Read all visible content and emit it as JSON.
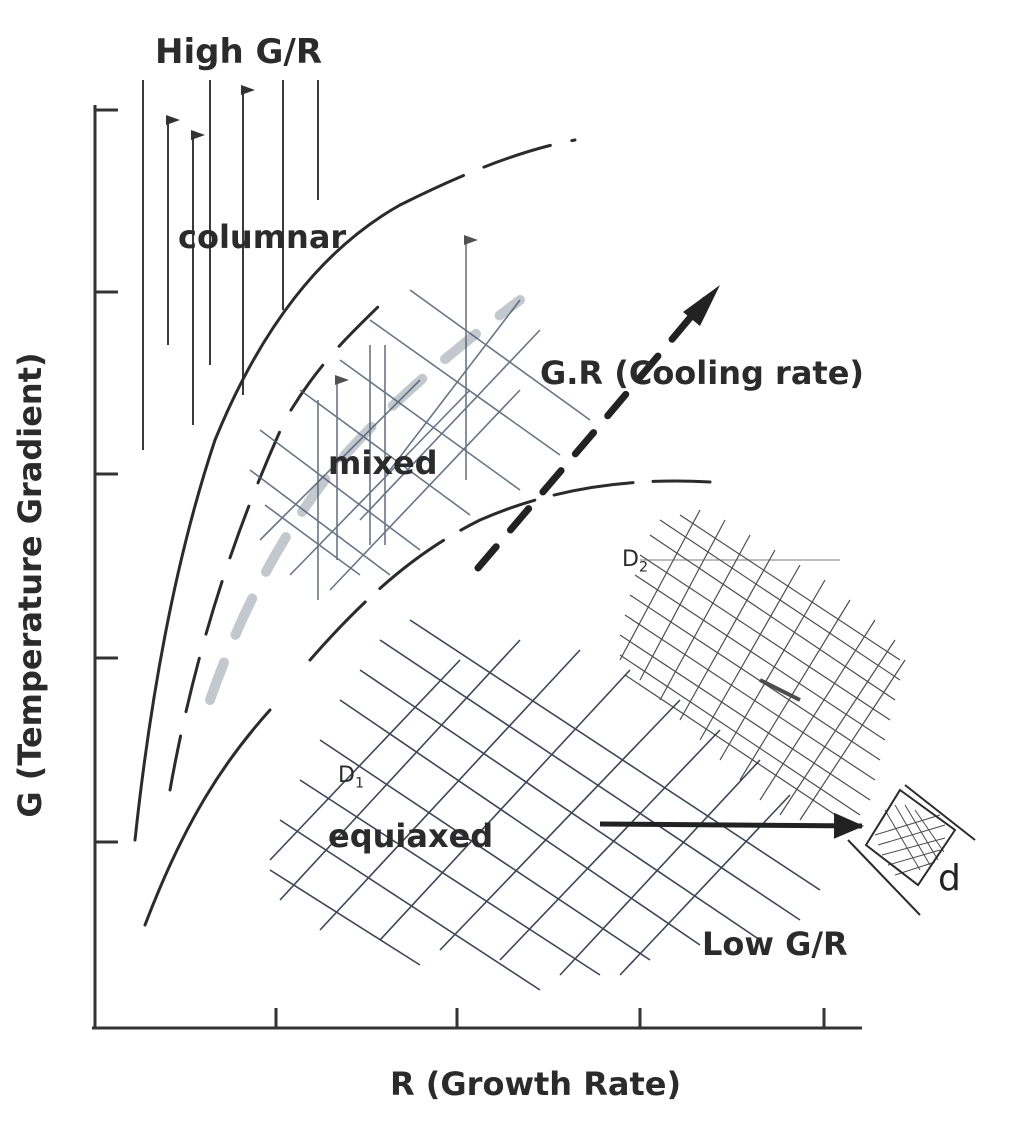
{
  "labels": {
    "high_gr": "High G/R",
    "low_gr": "Low G/R",
    "columnar": "columnar",
    "mixed": "mixed",
    "equiaxed": "equiaxed",
    "cooling_rate": "G.R (Cooling rate)",
    "d1_letter": "D",
    "d1_sub": "1",
    "d2_letter": "D",
    "d2_sub": "2",
    "d_small": "d"
  },
  "axes": {
    "x_label": "R (Growth Rate)",
    "y_label": "G (Temperature Gradient)"
  },
  "colors": {
    "ink": "#2b2b2b",
    "grid_blue": "#55708a",
    "grid_dark": "#333333"
  }
}
